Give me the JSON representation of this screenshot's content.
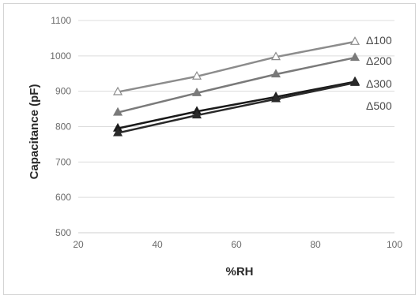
{
  "chart_data": {
    "type": "line",
    "xlabel": "%RH",
    "ylabel": "Capacitance (pF)",
    "xlim": [
      20,
      100
    ],
    "ylim": [
      500,
      1100
    ],
    "xticks": [
      20,
      40,
      60,
      80,
      100
    ],
    "yticks": [
      500,
      600,
      700,
      800,
      900,
      1000,
      1100
    ],
    "grid": true,
    "legend_position": "right",
    "series": [
      {
        "name": "Δ100",
        "marker": "open-triangle",
        "color": "#8c8c8c",
        "x": [
          30,
          50,
          70,
          90
        ],
        "y": [
          898,
          942,
          997,
          1040
        ]
      },
      {
        "name": "Δ200",
        "marker": "filled-triangle",
        "color": "#7a7a7a",
        "x": [
          30,
          50,
          70,
          90
        ],
        "y": [
          840,
          895,
          948,
          995
        ]
      },
      {
        "name": "Δ300",
        "marker": "filled-triangle",
        "color": "#1a1a1a",
        "x": [
          30,
          50,
          70,
          90
        ],
        "y": [
          795,
          843,
          884,
          927
        ]
      },
      {
        "name": "Δ500",
        "marker": "filled-triangle",
        "color": "#2a2a2a",
        "x": [
          30,
          50,
          70,
          90
        ],
        "y": [
          782,
          832,
          878,
          924
        ]
      }
    ]
  }
}
